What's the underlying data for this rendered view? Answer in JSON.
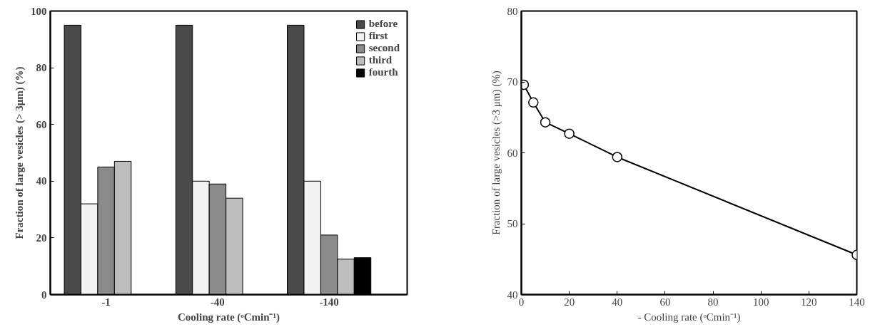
{
  "chart_data": [
    {
      "type": "bar",
      "categories": [
        "-1",
        "-40",
        "-140"
      ],
      "xlabel": "Cooling rate (ᵒCmin⁻¹)",
      "ylabel": "Fraction of large vesicles (> 3μm) (%)",
      "ylim": [
        0,
        100
      ],
      "yticks": [
        0,
        20,
        40,
        60,
        80,
        100
      ],
      "grid": false,
      "legend": "top right",
      "series": [
        {
          "name": "before",
          "color": "#4a4a4a",
          "values": [
            95,
            95,
            95
          ]
        },
        {
          "name": "first",
          "color": "#f2f2f2",
          "values": [
            32,
            40,
            40
          ]
        },
        {
          "name": "second",
          "color": "#8a8a8a",
          "values": [
            45,
            39,
            21
          ]
        },
        {
          "name": "third",
          "color": "#bdbdbd",
          "values": [
            47,
            34,
            12.5
          ]
        },
        {
          "name": "fourth",
          "color": "#000000",
          "values": [
            null,
            null,
            13
          ]
        }
      ]
    },
    {
      "type": "line",
      "x": [
        1,
        5,
        10,
        20,
        40,
        140
      ],
      "xlabel": "- Cooling rate (ᵒCmin⁻¹)",
      "ylabel": "Fraction of large vesicles (>3 μm) (%)",
      "xlim": [
        0,
        140
      ],
      "xticks": [
        0,
        20,
        40,
        60,
        80,
        100,
        120,
        140
      ],
      "ylim": [
        40,
        80
      ],
      "yticks": [
        40,
        50,
        60,
        70,
        80
      ],
      "grid": false,
      "legend": false,
      "marker": "circle",
      "line_style": "solid",
      "series": [
        {
          "color": "#000000",
          "values": [
            69.6,
            67.1,
            64.3,
            62.7,
            59.4,
            45.6
          ]
        }
      ]
    }
  ]
}
